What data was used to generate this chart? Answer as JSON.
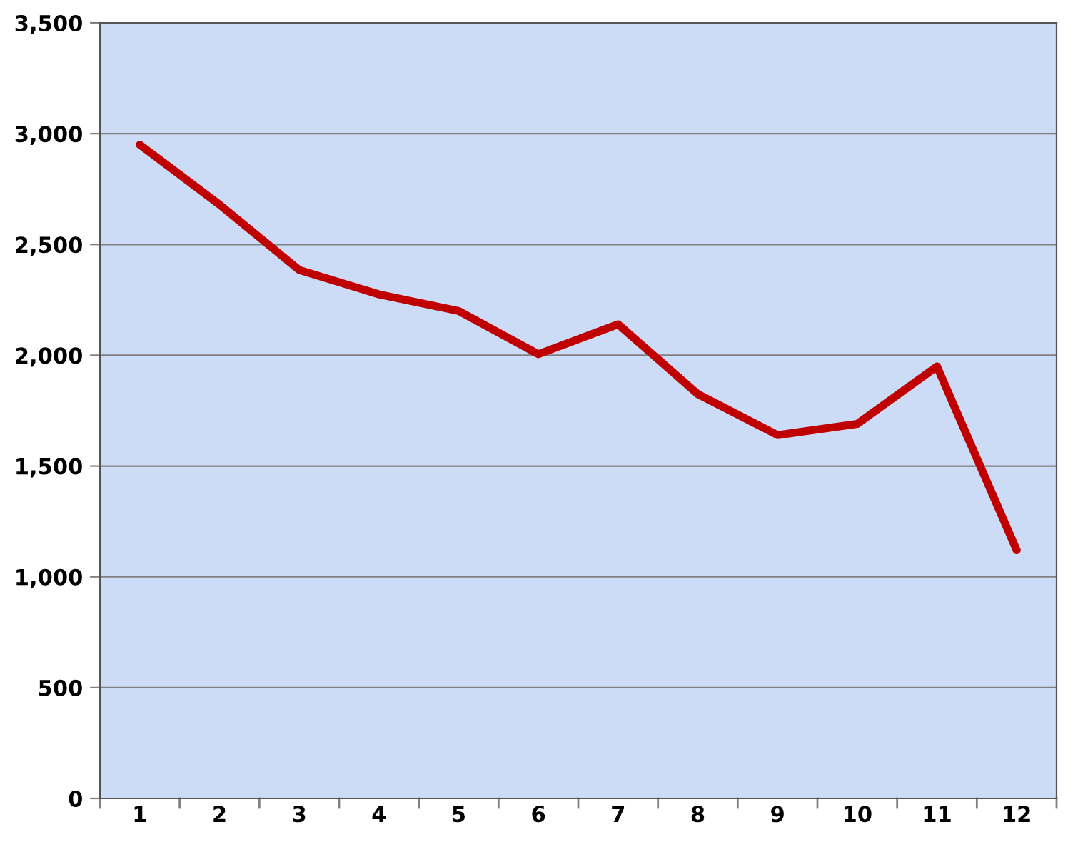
{
  "chart_data": {
    "type": "line",
    "categories": [
      "1",
      "2",
      "3",
      "4",
      "5",
      "6",
      "7",
      "8",
      "9",
      "10",
      "11",
      "12"
    ],
    "series": [
      {
        "color": "#c00000",
        "values": [
          2950,
          2680,
          2385,
          2275,
          2200,
          2005,
          2140,
          1825,
          1640,
          1690,
          1950,
          1120
        ]
      }
    ],
    "ylim": [
      0,
      3500
    ],
    "yticks": [
      0,
      {
        "value": 500,
        "label": "500"
      },
      {
        "value": 1000,
        "label": "1,000"
      },
      {
        "value": 1500,
        "label": "1,500"
      },
      {
        "value": 2000,
        "label": "2,000"
      },
      {
        "value": 2500,
        "label": "2,500"
      },
      {
        "value": 3000,
        "label": "3,000"
      },
      {
        "value": 3500,
        "label": "3,500"
      }
    ],
    "grid": "y",
    "marker": "none",
    "line_style": "solid"
  }
}
